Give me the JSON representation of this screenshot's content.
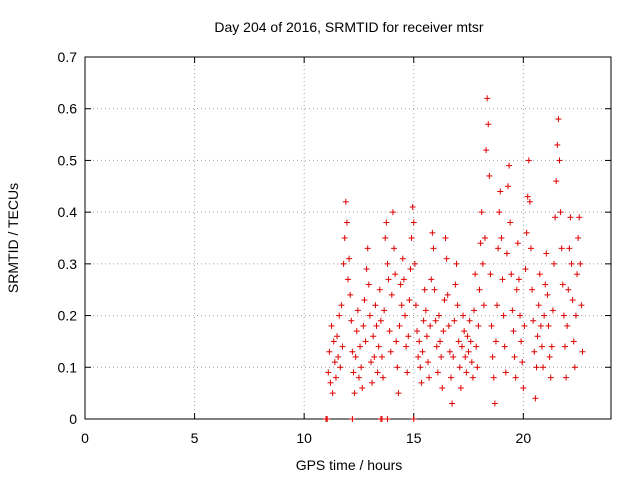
{
  "chart_data": {
    "type": "scatter",
    "title": "Day 204 of 2016, SRMTID for receiver mtsr",
    "xlabel": "GPS time / hours",
    "ylabel": "SRMTID / TECUs",
    "xlim": [
      0,
      24
    ],
    "ylim": [
      0,
      0.7
    ],
    "xticks": [
      0,
      5,
      10,
      15,
      20
    ],
    "yticks": [
      0,
      0.1,
      0.2,
      0.3,
      0.4,
      0.5,
      0.6,
      0.7
    ],
    "xtick_labels": [
      "0",
      "5",
      "10",
      "15",
      "20"
    ],
    "ytick_labels": [
      "0",
      "0.1",
      "0.2",
      "0.3",
      "0.4",
      "0.5",
      "0.6",
      "0.7"
    ],
    "grid": true,
    "marker": "+",
    "color": "#e00000",
    "series": [
      {
        "name": "SRMTID",
        "points": [
          [
            11.0,
            0.0
          ],
          [
            11.0,
            0.0
          ],
          [
            11.05,
            0.0
          ],
          [
            12.2,
            0.0
          ],
          [
            13.5,
            0.0
          ],
          [
            13.55,
            0.0
          ],
          [
            13.8,
            0.0
          ],
          [
            15.0,
            0.0
          ],
          [
            11.1,
            0.09
          ],
          [
            11.15,
            0.13
          ],
          [
            11.2,
            0.07
          ],
          [
            11.25,
            0.18
          ],
          [
            11.3,
            0.05
          ],
          [
            11.35,
            0.15
          ],
          [
            11.4,
            0.11
          ],
          [
            11.45,
            0.08
          ],
          [
            11.5,
            0.16
          ],
          [
            11.55,
            0.12
          ],
          [
            11.6,
            0.2
          ],
          [
            11.65,
            0.1
          ],
          [
            11.7,
            0.22
          ],
          [
            11.75,
            0.14
          ],
          [
            11.8,
            0.3
          ],
          [
            11.85,
            0.35
          ],
          [
            11.9,
            0.42
          ],
          [
            11.95,
            0.38
          ],
          [
            12.0,
            0.27
          ],
          [
            12.05,
            0.31
          ],
          [
            12.1,
            0.24
          ],
          [
            12.15,
            0.19
          ],
          [
            12.2,
            0.13
          ],
          [
            12.25,
            0.09
          ],
          [
            12.3,
            0.05
          ],
          [
            12.35,
            0.12
          ],
          [
            12.4,
            0.17
          ],
          [
            12.45,
            0.21
          ],
          [
            12.5,
            0.08
          ],
          [
            12.55,
            0.14
          ],
          [
            12.6,
            0.1
          ],
          [
            12.65,
            0.06
          ],
          [
            12.7,
            0.18
          ],
          [
            12.75,
            0.23
          ],
          [
            12.8,
            0.15
          ],
          [
            12.85,
            0.29
          ],
          [
            12.9,
            0.33
          ],
          [
            12.95,
            0.26
          ],
          [
            13.0,
            0.2
          ],
          [
            13.05,
            0.11
          ],
          [
            13.1,
            0.07
          ],
          [
            13.15,
            0.16
          ],
          [
            13.2,
            0.12
          ],
          [
            13.25,
            0.22
          ],
          [
            13.3,
            0.18
          ],
          [
            13.35,
            0.09
          ],
          [
            13.4,
            0.14
          ],
          [
            13.45,
            0.25
          ],
          [
            13.5,
            0.19
          ],
          [
            13.55,
            0.12
          ],
          [
            13.6,
            0.08
          ],
          [
            13.65,
            0.21
          ],
          [
            13.7,
            0.35
          ],
          [
            13.75,
            0.38
          ],
          [
            13.8,
            0.3
          ],
          [
            13.85,
            0.27
          ],
          [
            13.9,
            0.17
          ],
          [
            13.95,
            0.13
          ],
          [
            14.0,
            0.24
          ],
          [
            14.05,
            0.4
          ],
          [
            14.1,
            0.33
          ],
          [
            14.15,
            0.28
          ],
          [
            14.2,
            0.15
          ],
          [
            14.25,
            0.1
          ],
          [
            14.3,
            0.05
          ],
          [
            14.35,
            0.18
          ],
          [
            14.4,
            0.26
          ],
          [
            14.45,
            0.22
          ],
          [
            14.5,
            0.31
          ],
          [
            14.55,
            0.27
          ],
          [
            14.6,
            0.2
          ],
          [
            14.65,
            0.14
          ],
          [
            14.7,
            0.09
          ],
          [
            14.75,
            0.16
          ],
          [
            14.8,
            0.23
          ],
          [
            14.85,
            0.29
          ],
          [
            14.9,
            0.35
          ],
          [
            14.95,
            0.41
          ],
          [
            15.0,
            0.38
          ],
          [
            15.05,
            0.3
          ],
          [
            15.1,
            0.22
          ],
          [
            15.15,
            0.17
          ],
          [
            15.2,
            0.12
          ],
          [
            15.25,
            0.15
          ],
          [
            15.3,
            0.1
          ],
          [
            15.35,
            0.07
          ],
          [
            15.4,
            0.13
          ],
          [
            15.45,
            0.19
          ],
          [
            15.5,
            0.25
          ],
          [
            15.55,
            0.21
          ],
          [
            15.6,
            0.16
          ],
          [
            15.65,
            0.11
          ],
          [
            15.7,
            0.08
          ],
          [
            15.75,
            0.18
          ],
          [
            15.8,
            0.27
          ],
          [
            15.85,
            0.36
          ],
          [
            15.9,
            0.33
          ],
          [
            15.95,
            0.25
          ],
          [
            16.0,
            0.19
          ],
          [
            16.05,
            0.14
          ],
          [
            16.1,
            0.09
          ],
          [
            16.15,
            0.2
          ],
          [
            16.2,
            0.15
          ],
          [
            16.25,
            0.12
          ],
          [
            16.3,
            0.06
          ],
          [
            16.35,
            0.17
          ],
          [
            16.4,
            0.23
          ],
          [
            16.45,
            0.35
          ],
          [
            16.5,
            0.31
          ],
          [
            16.55,
            0.24
          ],
          [
            16.6,
            0.18
          ],
          [
            16.65,
            0.13
          ],
          [
            16.7,
            0.08
          ],
          [
            16.75,
            0.03
          ],
          [
            16.8,
            0.12
          ],
          [
            16.85,
            0.19
          ],
          [
            16.9,
            0.26
          ],
          [
            16.95,
            0.3
          ],
          [
            17.0,
            0.22
          ],
          [
            17.05,
            0.15
          ],
          [
            17.1,
            0.1
          ],
          [
            17.15,
            0.06
          ],
          [
            17.2,
            0.14
          ],
          [
            17.25,
            0.2
          ],
          [
            17.3,
            0.17
          ],
          [
            17.35,
            0.12
          ],
          [
            17.4,
            0.09
          ],
          [
            17.45,
            0.16
          ],
          [
            17.5,
            0.13
          ],
          [
            17.55,
            0.19
          ],
          [
            17.6,
            0.15
          ],
          [
            17.65,
            0.11
          ],
          [
            17.7,
            0.08
          ],
          [
            17.75,
            0.21
          ],
          [
            17.8,
            0.28
          ],
          [
            17.85,
            0.14
          ],
          [
            17.9,
            0.1
          ],
          [
            17.95,
            0.18
          ],
          [
            18.0,
            0.25
          ],
          [
            18.05,
            0.34
          ],
          [
            18.1,
            0.4
          ],
          [
            18.15,
            0.3
          ],
          [
            18.2,
            0.22
          ],
          [
            18.25,
            0.35
          ],
          [
            18.3,
            0.52
          ],
          [
            18.35,
            0.62
          ],
          [
            18.4,
            0.57
          ],
          [
            18.45,
            0.47
          ],
          [
            18.5,
            0.28
          ],
          [
            18.55,
            0.18
          ],
          [
            18.6,
            0.12
          ],
          [
            18.65,
            0.08
          ],
          [
            18.7,
            0.03
          ],
          [
            18.75,
            0.15
          ],
          [
            18.8,
            0.22
          ],
          [
            18.85,
            0.33
          ],
          [
            18.9,
            0.4
          ],
          [
            18.95,
            0.44
          ],
          [
            19.0,
            0.35
          ],
          [
            19.05,
            0.27
          ],
          [
            19.1,
            0.2
          ],
          [
            19.15,
            0.14
          ],
          [
            19.2,
            0.09
          ],
          [
            19.25,
            0.32
          ],
          [
            19.3,
            0.45
          ],
          [
            19.35,
            0.49
          ],
          [
            19.4,
            0.38
          ],
          [
            19.45,
            0.28
          ],
          [
            19.5,
            0.21
          ],
          [
            19.55,
            0.17
          ],
          [
            19.6,
            0.12
          ],
          [
            19.65,
            0.08
          ],
          [
            19.7,
            0.25
          ],
          [
            19.75,
            0.34
          ],
          [
            19.8,
            0.27
          ],
          [
            19.85,
            0.2
          ],
          [
            19.9,
            0.15
          ],
          [
            19.95,
            0.11
          ],
          [
            20.0,
            0.06
          ],
          [
            20.05,
            0.18
          ],
          [
            20.1,
            0.29
          ],
          [
            20.15,
            0.36
          ],
          [
            20.2,
            0.43
          ],
          [
            20.25,
            0.5
          ],
          [
            20.3,
            0.42
          ],
          [
            20.35,
            0.33
          ],
          [
            20.4,
            0.25
          ],
          [
            20.45,
            0.19
          ],
          [
            20.5,
            0.13
          ],
          [
            20.55,
            0.04
          ],
          [
            20.6,
            0.1
          ],
          [
            20.65,
            0.16
          ],
          [
            20.7,
            0.22
          ],
          [
            20.75,
            0.28
          ],
          [
            20.8,
            0.18
          ],
          [
            20.85,
            0.14
          ],
          [
            20.9,
            0.1
          ],
          [
            20.95,
            0.2
          ],
          [
            21.0,
            0.26
          ],
          [
            21.05,
            0.32
          ],
          [
            21.1,
            0.24
          ],
          [
            21.15,
            0.18
          ],
          [
            21.2,
            0.12
          ],
          [
            21.25,
            0.08
          ],
          [
            21.3,
            0.14
          ],
          [
            21.35,
            0.21
          ],
          [
            21.4,
            0.3
          ],
          [
            21.45,
            0.39
          ],
          [
            21.5,
            0.46
          ],
          [
            21.55,
            0.53
          ],
          [
            21.6,
            0.58
          ],
          [
            21.65,
            0.5
          ],
          [
            21.7,
            0.4
          ],
          [
            21.75,
            0.33
          ],
          [
            21.8,
            0.26
          ],
          [
            21.85,
            0.2
          ],
          [
            21.9,
            0.14
          ],
          [
            21.95,
            0.08
          ],
          [
            22.0,
            0.18
          ],
          [
            22.05,
            0.25
          ],
          [
            22.1,
            0.33
          ],
          [
            22.15,
            0.39
          ],
          [
            22.2,
            0.3
          ],
          [
            22.25,
            0.23
          ],
          [
            22.3,
            0.15
          ],
          [
            22.35,
            0.1
          ],
          [
            22.4,
            0.2
          ],
          [
            22.45,
            0.28
          ],
          [
            22.5,
            0.35
          ],
          [
            22.55,
            0.39
          ],
          [
            22.6,
            0.3
          ],
          [
            22.65,
            0.22
          ],
          [
            22.7,
            0.13
          ]
        ]
      }
    ]
  }
}
